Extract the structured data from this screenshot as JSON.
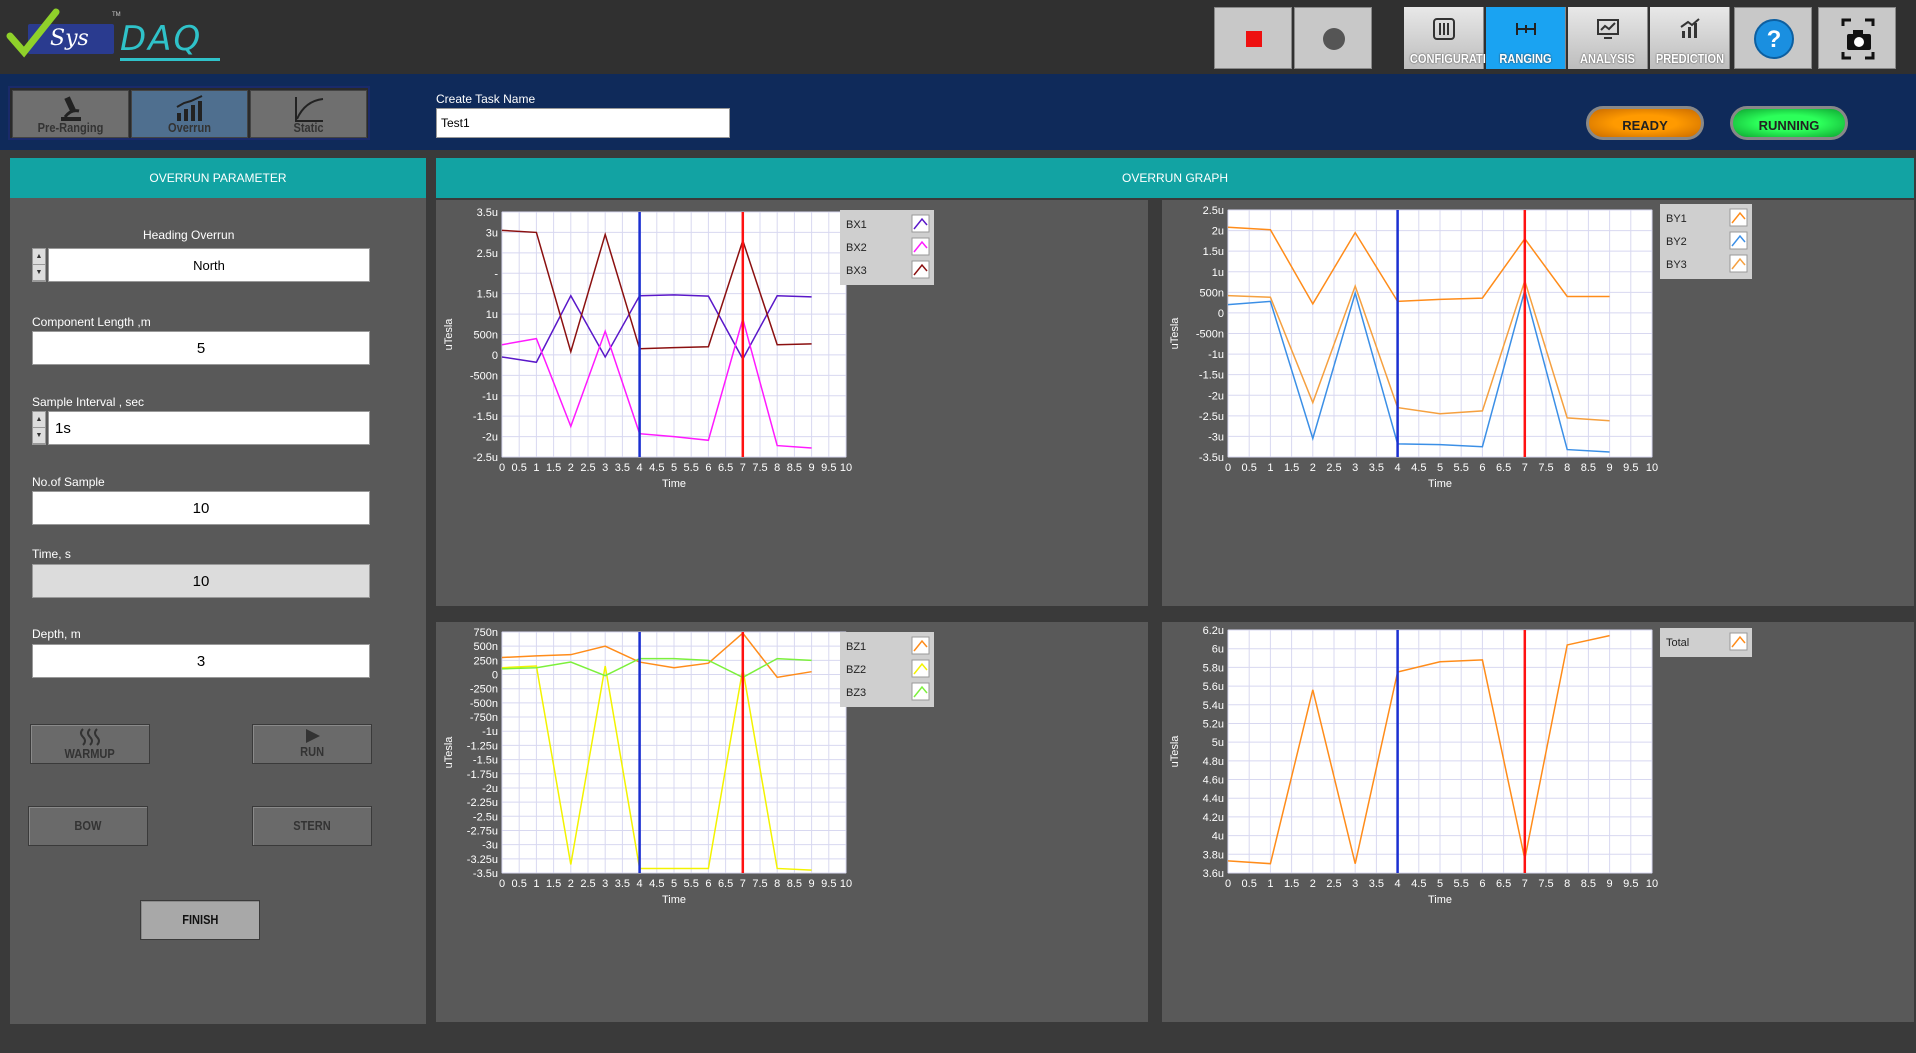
{
  "header": {
    "logo_sys": "Sys",
    "logo_tm": "TM",
    "logo_daq": "DAQ",
    "nav": [
      {
        "label": "CONFIGURATION",
        "icon": "sliders-icon"
      },
      {
        "label": "RANGING",
        "icon": "ranging-icon"
      },
      {
        "label": "ANALYSIS",
        "icon": "analysis-icon"
      },
      {
        "label": "PREDICTION",
        "icon": "prediction-icon"
      }
    ]
  },
  "task": {
    "modes": [
      {
        "label": "Pre-Ranging",
        "icon": "microscope-icon"
      },
      {
        "label": "Overrun",
        "icon": "bar-chart-icon"
      },
      {
        "label": "Static",
        "icon": "curve-icon"
      }
    ],
    "name_label": "Create Task Name",
    "name_value": "Test1",
    "status_ready": "READY",
    "status_running": "RUNNING"
  },
  "parameters": {
    "title": "OVERRUN PARAMETER",
    "heading_label": "Heading Overrun",
    "heading_value": "North",
    "component_length_label": "Component Length ,m",
    "component_length_value": "5",
    "sample_interval_label": "Sample Interval , sec",
    "sample_interval_value": "1s",
    "samples_label": "No.of Sample",
    "samples_value": "10",
    "time_label": "Time, s",
    "time_value": "10",
    "depth_label": "Depth, m",
    "depth_value": "3",
    "buttons": {
      "warmup": "WARMUP",
      "run": "RUN",
      "bow": "BOW",
      "stern": "STERN",
      "finish": "FINISH"
    }
  },
  "graph": {
    "title": "OVERRUN GRAPH",
    "cursor_colors": {
      "blue": "#1b2fd1",
      "red": "#ff1111"
    }
  },
  "chart_data": [
    {
      "type": "line",
      "xlabel": "Time",
      "ylabel": "uTesla",
      "xlim": [
        0,
        10
      ],
      "ylim": [
        -2.5,
        3.5
      ],
      "xticks": [
        0,
        0.5,
        1,
        1.5,
        2,
        2.5,
        3,
        3.5,
        4,
        4.5,
        5,
        5.5,
        6,
        6.5,
        7,
        7.5,
        8,
        8.5,
        9,
        9.5,
        10
      ],
      "xtick_labels": [
        "0",
        "0.5",
        "1",
        "1.5",
        "2",
        "2.5",
        "3",
        "3.5",
        "4",
        "4.5",
        "5",
        "5.5",
        "6",
        "6.5",
        "7",
        "7.5",
        "8",
        "8.5",
        "9",
        "9.5",
        "10"
      ],
      "yticks": [
        -2.5,
        -2,
        -1.5,
        -1,
        -0.5,
        0,
        0.5,
        1,
        1.5,
        2,
        2.5,
        3,
        3.5
      ],
      "ytick_labels": [
        "-2.5u",
        "-2u",
        "-1.5u",
        "-1u",
        "-500n",
        "0",
        "500n",
        "1u",
        "1.5u",
        "-",
        "2.5u",
        "3u",
        "3.5u"
      ],
      "cursors": [
        4,
        7
      ],
      "x": [
        0,
        1,
        2,
        3,
        4,
        5,
        6,
        7,
        8,
        9
      ],
      "series": [
        {
          "name": "BX1",
          "color": "#5a18c9",
          "values": [
            -0.05,
            -0.18,
            1.45,
            -0.05,
            1.45,
            1.47,
            1.44,
            -0.1,
            1.45,
            1.42
          ]
        },
        {
          "name": "BX2",
          "color": "#ff1aff",
          "values": [
            0.25,
            0.4,
            -1.75,
            0.58,
            -1.93,
            -2.0,
            -2.09,
            0.88,
            -2.22,
            -2.28
          ]
        },
        {
          "name": "BX3",
          "color": "#8b1010",
          "values": [
            3.05,
            3.0,
            0.08,
            2.95,
            0.15,
            0.18,
            0.2,
            2.8,
            0.25,
            0.27
          ]
        }
      ]
    },
    {
      "type": "line",
      "xlabel": "Time",
      "ylabel": "uTesla",
      "xlim": [
        0,
        10
      ],
      "ylim": [
        -3.5,
        2.5
      ],
      "xticks": [
        0,
        0.5,
        1,
        1.5,
        2,
        2.5,
        3,
        3.5,
        4,
        4.5,
        5,
        5.5,
        6,
        6.5,
        7,
        7.5,
        8,
        8.5,
        9,
        9.5,
        10
      ],
      "xtick_labels": [
        "0",
        "0.5",
        "1",
        "1.5",
        "2",
        "2.5",
        "3",
        "3.5",
        "4",
        "4.5",
        "5",
        "5.5",
        "6",
        "6.5",
        "7",
        "7.5",
        "8",
        "8.5",
        "9",
        "9.5",
        "10"
      ],
      "yticks": [
        -3.5,
        -3,
        -2.5,
        -2,
        -1.5,
        -1,
        -0.5,
        0,
        0.5,
        1,
        1.5,
        2,
        2.5
      ],
      "ytick_labels": [
        "-3.5u",
        "-3u",
        "-2.5u",
        "-2u",
        "-1.5u",
        "-1u",
        "-500n",
        "0",
        "500n",
        "1u",
        "1.5u",
        "2u",
        "2.5u"
      ],
      "cursors": [
        4,
        7
      ],
      "x": [
        0,
        1,
        2,
        3,
        4,
        5,
        6,
        7,
        8,
        9
      ],
      "series": [
        {
          "name": "BY1",
          "color": "#ff8c1a",
          "values": [
            2.08,
            2.02,
            0.22,
            1.95,
            0.28,
            0.33,
            0.36,
            1.8,
            0.4,
            0.4
          ]
        },
        {
          "name": "BY2",
          "color": "#3b8fe6",
          "values": [
            0.2,
            0.28,
            -3.05,
            0.48,
            -3.18,
            -3.2,
            -3.25,
            0.55,
            -3.32,
            -3.38
          ]
        },
        {
          "name": "BY3",
          "color": "#f5a040",
          "values": [
            0.42,
            0.38,
            -2.18,
            0.65,
            -2.3,
            -2.45,
            -2.38,
            0.78,
            -2.55,
            -2.62
          ]
        }
      ]
    },
    {
      "type": "line",
      "xlabel": "Time",
      "ylabel": "uTesla",
      "xlim": [
        0,
        10
      ],
      "ylim": [
        -3.5,
        0.75
      ],
      "xticks": [
        0,
        0.5,
        1,
        1.5,
        2,
        2.5,
        3,
        3.5,
        4,
        4.5,
        5,
        5.5,
        6,
        6.5,
        7,
        7.5,
        8,
        8.5,
        9,
        9.5,
        10
      ],
      "xtick_labels": [
        "0",
        "0.5",
        "1",
        "1.5",
        "2",
        "2.5",
        "3",
        "3.5",
        "4",
        "4.5",
        "5",
        "5.5",
        "6",
        "6.5",
        "7",
        "7.5",
        "8",
        "8.5",
        "9",
        "9.5",
        "10"
      ],
      "yticks": [
        -3.5,
        -3.25,
        -3,
        -2.75,
        -2.5,
        -2.25,
        -2,
        -1.75,
        -1.5,
        -1.25,
        -1,
        -0.75,
        -0.5,
        -0.25,
        0,
        0.25,
        0.5,
        0.75
      ],
      "ytick_labels": [
        "-3.5u",
        "-3.25u",
        "-3u",
        "-2.75u",
        "-2.5u",
        "-2.25u",
        "-2u",
        "-1.75u",
        "-1.5u",
        "-1.25u",
        "-1u",
        "-750n",
        "-500n",
        "-250n",
        "0",
        "250n",
        "500n",
        "750n"
      ],
      "cursors": [
        4,
        7
      ],
      "x": [
        0,
        1,
        2,
        3,
        4,
        5,
        6,
        7,
        8,
        9
      ],
      "series": [
        {
          "name": "BZ1",
          "color": "#ff8c1a",
          "values": [
            0.3,
            0.33,
            0.35,
            0.5,
            0.22,
            0.12,
            0.2,
            0.73,
            -0.05,
            0.05
          ]
        },
        {
          "name": "BZ2",
          "color": "#f3f300",
          "values": [
            0.12,
            0.15,
            -3.35,
            0.15,
            -3.42,
            -3.42,
            -3.42,
            0.1,
            -3.42,
            -3.45
          ]
        },
        {
          "name": "BZ3",
          "color": "#7cf03c",
          "values": [
            0.1,
            0.12,
            0.22,
            -0.02,
            0.28,
            0.28,
            0.25,
            -0.05,
            0.28,
            0.25
          ]
        }
      ]
    },
    {
      "type": "line",
      "xlabel": "Time",
      "ylabel": "uTesla",
      "xlim": [
        0,
        10
      ],
      "ylim": [
        3.6,
        6.2
      ],
      "xticks": [
        0,
        0.5,
        1,
        1.5,
        2,
        2.5,
        3,
        3.5,
        4,
        4.5,
        5,
        5.5,
        6,
        6.5,
        7,
        7.5,
        8,
        8.5,
        9,
        9.5,
        10
      ],
      "xtick_labels": [
        "0",
        "0.5",
        "1",
        "1.5",
        "2",
        "2.5",
        "3",
        "3.5",
        "4",
        "4.5",
        "5",
        "5.5",
        "6",
        "6.5",
        "7",
        "7.5",
        "8",
        "8.5",
        "9",
        "9.5",
        "10"
      ],
      "yticks": [
        3.6,
        3.8,
        4,
        4.2,
        4.4,
        4.6,
        4.8,
        5,
        5.2,
        5.4,
        5.6,
        5.8,
        6,
        6.2
      ],
      "ytick_labels": [
        "3.6u",
        "3.8u",
        "4u",
        "4.2u",
        "4.4u",
        "4.6u",
        "4.8u",
        "5u",
        "5.2u",
        "5.4u",
        "5.6u",
        "5.8u",
        "6u",
        "6.2u"
      ],
      "cursors": [
        4,
        7
      ],
      "x": [
        0,
        1,
        2,
        3,
        4,
        5,
        6,
        7,
        8,
        9
      ],
      "series": [
        {
          "name": "Total",
          "color": "#ff8c1a",
          "values": [
            3.73,
            3.7,
            5.56,
            3.7,
            5.75,
            5.86,
            5.88,
            3.75,
            6.04,
            6.14
          ]
        }
      ]
    }
  ]
}
